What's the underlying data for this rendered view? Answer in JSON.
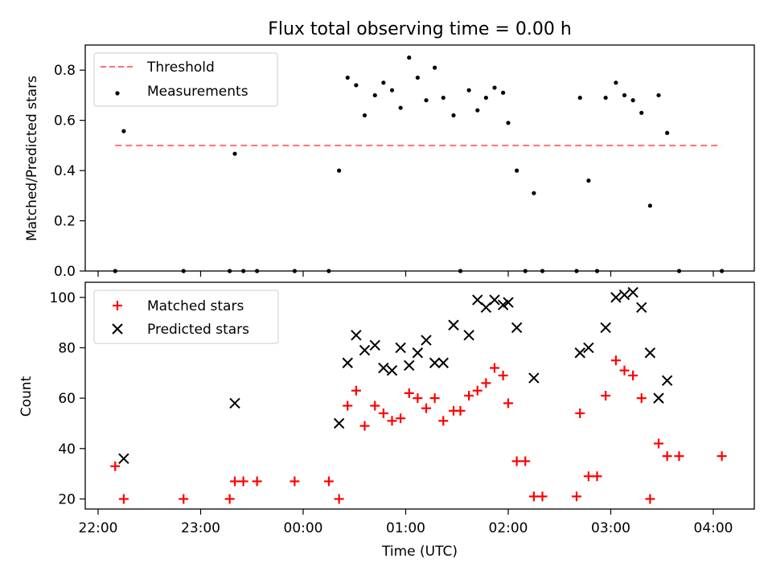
{
  "chart_data": {
    "type": "scatter",
    "title": "Flux total observing time = 0.00 h",
    "xlabel": "Time (UTC)",
    "x_tick_labels": [
      "22:00",
      "23:00",
      "00:00",
      "01:00",
      "02:00",
      "03:00",
      "04:00"
    ],
    "panels": [
      {
        "ylabel": "Matched/Predicted stars",
        "ylim": [
          0,
          0.9
        ],
        "yticks": [
          0.0,
          0.2,
          0.4,
          0.6,
          0.8
        ],
        "ytick_labels": [
          "0.0",
          "0.2",
          "0.4",
          "0.6",
          "0.8"
        ],
        "legend_position": "upper-left",
        "threshold": {
          "name": "Threshold",
          "value": 0.5,
          "x_range": [
            "22:10",
            "04:05"
          ],
          "color": "#ff7070",
          "style": "dashed"
        },
        "series": [
          {
            "name": "Measurements",
            "marker": "dot",
            "color": "#000000",
            "points": [
              [
                "22:10",
                0.0
              ],
              [
                "22:15",
                0.557
              ],
              [
                "22:50",
                0.0
              ],
              [
                "23:17",
                0.0
              ],
              [
                "23:20",
                0.467
              ],
              [
                "23:25",
                0.0
              ],
              [
                "23:33",
                0.0
              ],
              [
                "23:55",
                0.0
              ],
              [
                "00:15",
                0.0
              ],
              [
                "00:21",
                0.4
              ],
              [
                "00:26",
                0.77
              ],
              [
                "00:31",
                0.74
              ],
              [
                "00:36",
                0.62
              ],
              [
                "00:42",
                0.7
              ],
              [
                "00:47",
                0.75
              ],
              [
                "00:52",
                0.72
              ],
              [
                "00:57",
                0.65
              ],
              [
                "01:02",
                0.85
              ],
              [
                "01:07",
                0.77
              ],
              [
                "01:12",
                0.68
              ],
              [
                "01:17",
                0.81
              ],
              [
                "01:22",
                0.69
              ],
              [
                "01:28",
                0.62
              ],
              [
                "01:32",
                0.0
              ],
              [
                "01:37",
                0.72
              ],
              [
                "01:42",
                0.64
              ],
              [
                "01:47",
                0.69
              ],
              [
                "01:52",
                0.73
              ],
              [
                "01:57",
                0.71
              ],
              [
                "02:00",
                0.59
              ],
              [
                "02:05",
                0.4
              ],
              [
                "02:10",
                0.0
              ],
              [
                "02:15",
                0.31
              ],
              [
                "02:20",
                0.0
              ],
              [
                "02:40",
                0.0
              ],
              [
                "02:42",
                0.69
              ],
              [
                "02:47",
                0.36
              ],
              [
                "02:52",
                0.0
              ],
              [
                "02:57",
                0.69
              ],
              [
                "03:03",
                0.75
              ],
              [
                "03:08",
                0.7
              ],
              [
                "03:13",
                0.68
              ],
              [
                "03:18",
                0.63
              ],
              [
                "03:23",
                0.26
              ],
              [
                "03:28",
                0.7
              ],
              [
                "03:33",
                0.55
              ],
              [
                "03:40",
                0.0
              ],
              [
                "04:05",
                0.0
              ]
            ]
          }
        ]
      },
      {
        "ylabel": "Count",
        "ylim": [
          16,
          106
        ],
        "yticks": [
          20,
          40,
          60,
          80,
          100
        ],
        "ytick_labels": [
          "20",
          "40",
          "60",
          "80",
          "100"
        ],
        "legend_position": "upper-left",
        "series": [
          {
            "name": "Matched stars",
            "marker": "plus",
            "color": "#ff0000",
            "points": [
              [
                "22:10",
                33
              ],
              [
                "22:15",
                20
              ],
              [
                "22:50",
                20
              ],
              [
                "23:17",
                20
              ],
              [
                "23:20",
                27
              ],
              [
                "23:25",
                27
              ],
              [
                "23:33",
                27
              ],
              [
                "23:55",
                27
              ],
              [
                "00:15",
                27
              ],
              [
                "00:21",
                20
              ],
              [
                "00:26",
                57
              ],
              [
                "00:31",
                63
              ],
              [
                "00:36",
                49
              ],
              [
                "00:42",
                57
              ],
              [
                "00:47",
                54
              ],
              [
                "00:52",
                51
              ],
              [
                "00:57",
                52
              ],
              [
                "01:02",
                62
              ],
              [
                "01:07",
                60
              ],
              [
                "01:12",
                56
              ],
              [
                "01:17",
                60
              ],
              [
                "01:22",
                51
              ],
              [
                "01:28",
                55
              ],
              [
                "01:32",
                55
              ],
              [
                "01:37",
                61
              ],
              [
                "01:42",
                63
              ],
              [
                "01:47",
                66
              ],
              [
                "01:52",
                72
              ],
              [
                "01:57",
                69
              ],
              [
                "02:00",
                58
              ],
              [
                "02:05",
                35
              ],
              [
                "02:10",
                35
              ],
              [
                "02:15",
                21
              ],
              [
                "02:20",
                21
              ],
              [
                "02:40",
                21
              ],
              [
                "02:42",
                54
              ],
              [
                "02:47",
                29
              ],
              [
                "02:52",
                29
              ],
              [
                "02:57",
                61
              ],
              [
                "03:03",
                75
              ],
              [
                "03:08",
                71
              ],
              [
                "03:13",
                69
              ],
              [
                "03:18",
                60
              ],
              [
                "03:23",
                20
              ],
              [
                "03:28",
                42
              ],
              [
                "03:33",
                37
              ],
              [
                "03:40",
                37
              ],
              [
                "04:05",
                37
              ]
            ]
          },
          {
            "name": "Predicted stars",
            "marker": "cross",
            "color": "#000000",
            "points": [
              [
                "22:15",
                36
              ],
              [
                "23:20",
                58
              ],
              [
                "00:21",
                50
              ],
              [
                "00:26",
                74
              ],
              [
                "00:31",
                85
              ],
              [
                "00:36",
                79
              ],
              [
                "00:42",
                81
              ],
              [
                "00:47",
                72
              ],
              [
                "00:52",
                71
              ],
              [
                "00:57",
                80
              ],
              [
                "01:02",
                73
              ],
              [
                "01:07",
                78
              ],
              [
                "01:12",
                83
              ],
              [
                "01:17",
                74
              ],
              [
                "01:22",
                74
              ],
              [
                "01:28",
                89
              ],
              [
                "01:37",
                85
              ],
              [
                "01:42",
                99
              ],
              [
                "01:47",
                96
              ],
              [
                "01:52",
                99
              ],
              [
                "01:57",
                97
              ],
              [
                "02:00",
                98
              ],
              [
                "02:05",
                88
              ],
              [
                "02:15",
                68
              ],
              [
                "02:42",
                78
              ],
              [
                "02:47",
                80
              ],
              [
                "02:57",
                88
              ],
              [
                "03:03",
                100
              ],
              [
                "03:08",
                101
              ],
              [
                "03:13",
                102
              ],
              [
                "03:18",
                96
              ],
              [
                "03:23",
                78
              ],
              [
                "03:28",
                60
              ],
              [
                "03:33",
                67
              ]
            ]
          }
        ]
      }
    ]
  }
}
